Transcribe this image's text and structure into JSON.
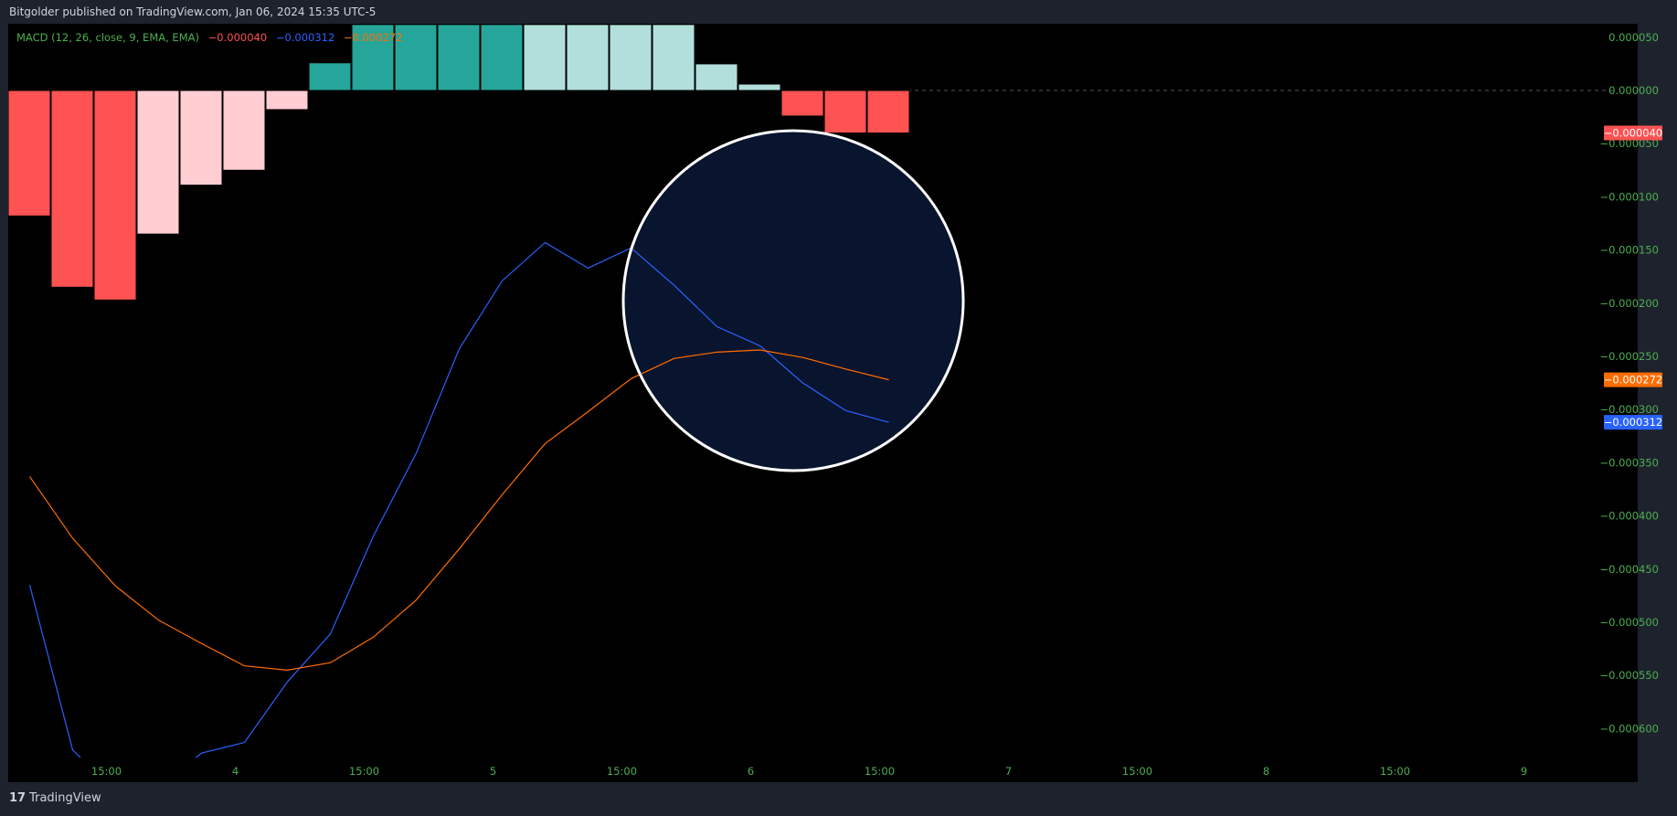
{
  "header": {
    "title": "Bitgolder published on TradingView.com, Jan 06, 2024 15:35 UTC-5"
  },
  "legend": {
    "name": "MACD (12, 26, close, 9, EMA, EMA)",
    "histogram_value": "−0.000040",
    "macd_value": "−0.000312",
    "signal_value": "−0.000272"
  },
  "footer": {
    "brand_mark": "17",
    "brand": "TradingView"
  },
  "colors": {
    "background": "#000000",
    "frame": "#1e222d",
    "axis_text": "#4caf50",
    "macd_line": "#2962ff",
    "signal_line": "#ff6d00",
    "hist_pos_strong": "#26a69a",
    "hist_pos_weak": "#b2dfdb",
    "hist_neg_strong": "#ff5252",
    "hist_neg_weak": "#ffcdd2",
    "circle_fill": "#0a1633",
    "circle_stroke": "#ffffff"
  },
  "chart_data": {
    "type": "bar",
    "title": "MACD (12, 26, close, 9, EMA, EMA)",
    "x_tick_labels": [
      "15:00",
      "4",
      "15:00",
      "5",
      "15:00",
      "6",
      "15:00",
      "7",
      "15:00",
      "8",
      "15:00",
      "9"
    ],
    "y_tick_labels": [
      "0.000050",
      "0.000000",
      "−0.000050",
      "−0.000100",
      "−0.000150",
      "−0.000200",
      "−0.000250",
      "−0.000300",
      "−0.000350",
      "−0.000400",
      "−0.000450",
      "−0.000500",
      "−0.000550",
      "−0.000600"
    ],
    "y_ticks": [
      5e-05,
      0,
      -5e-05,
      -0.0001,
      -0.00015,
      -0.0002,
      -0.00025,
      -0.0003,
      -0.00035,
      -0.0004,
      -0.00045,
      -0.0005,
      -0.00055,
      -0.0006
    ],
    "ylim": [
      -0.00063,
      6.2e-05
    ],
    "histogram": [
      {
        "value": -0.000118,
        "shade": "neg_strong"
      },
      {
        "value": -0.000185,
        "shade": "neg_strong"
      },
      {
        "value": -0.000197,
        "shade": "neg_strong"
      },
      {
        "value": -0.000135,
        "shade": "neg_weak"
      },
      {
        "value": -8.9e-05,
        "shade": "neg_weak"
      },
      {
        "value": -7.5e-05,
        "shade": "neg_weak"
      },
      {
        "value": -1.8e-05,
        "shade": "neg_weak"
      },
      {
        "value": 2.6e-05,
        "shade": "pos_strong"
      },
      {
        "value": 6.2e-05,
        "shade": "pos_strong"
      },
      {
        "value": 6.2e-05,
        "shade": "pos_strong"
      },
      {
        "value": 6.2e-05,
        "shade": "pos_strong"
      },
      {
        "value": 6.2e-05,
        "shade": "pos_strong"
      },
      {
        "value": 6.2e-05,
        "shade": "pos_weak"
      },
      {
        "value": 6.2e-05,
        "shade": "pos_weak"
      },
      {
        "value": 6.2e-05,
        "shade": "pos_weak"
      },
      {
        "value": 6.2e-05,
        "shade": "pos_weak"
      },
      {
        "value": 2.5e-05,
        "shade": "pos_weak"
      },
      {
        "value": 6e-06,
        "shade": "pos_weak"
      },
      {
        "value": -2.4e-05,
        "shade": "neg_strong"
      },
      {
        "value": -4e-05,
        "shade": "neg_strong"
      },
      {
        "value": -4e-05,
        "shade": "neg_strong"
      }
    ],
    "series": [
      {
        "name": "MACD",
        "values": [
          -0.000465,
          -0.00062,
          -0.00066,
          -0.000655,
          -0.000623,
          -0.000613,
          -0.000556,
          -0.000511,
          -0.000419,
          -0.000341,
          -0.000243,
          -0.000179,
          -0.000143,
          -0.000167,
          -0.000148,
          -0.000183,
          -0.000222,
          -0.00024,
          -0.000275,
          -0.000301,
          -0.000312
        ]
      },
      {
        "name": "Signal",
        "values": [
          -0.000363,
          -0.000421,
          -0.000466,
          -0.000498,
          -0.00052,
          -0.000541,
          -0.000545,
          -0.000538,
          -0.000514,
          -0.000479,
          -0.000431,
          -0.00038,
          -0.000332,
          -0.000302,
          -0.000271,
          -0.000252,
          -0.000246,
          -0.000244,
          -0.000251,
          -0.000262,
          -0.000272
        ]
      }
    ],
    "price_tags": [
      {
        "value": -4e-05,
        "label": "−0.000040",
        "color": "#ff5252"
      },
      {
        "value": -0.000272,
        "label": "−0.000272",
        "color": "#ff6d00"
      },
      {
        "value": -0.000312,
        "label": "−0.000312",
        "color": "#2962ff"
      }
    ],
    "grid": false
  }
}
